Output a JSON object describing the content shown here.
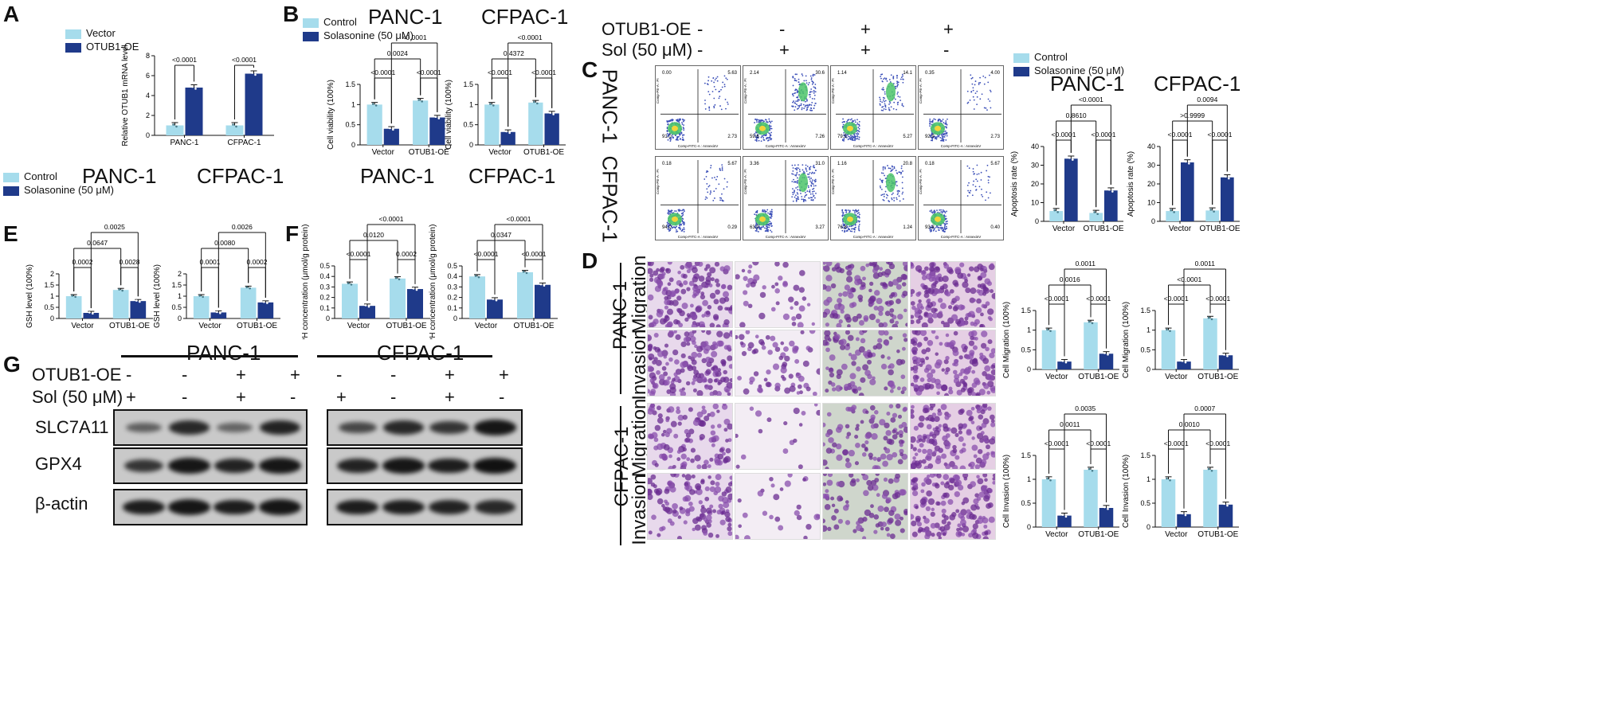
{
  "colors": {
    "light": "#a6dcec",
    "dark": "#1f3a8a",
    "micro_bg": "#e7d6ea",
    "micro_cell": "#6b2c91"
  },
  "panels": {
    "A": "A",
    "B": "B",
    "C": "C",
    "D": "D",
    "E": "E",
    "F": "F",
    "G": "G"
  },
  "legend": {
    "vector": "Vector",
    "oe": "OTUB1-OE",
    "control": "Control",
    "sol": "Solasonine (50 μM)",
    "sol_short": "Solasonine (50 μM)"
  },
  "titles": {
    "panc": "PANC-1",
    "cfpac": "CFPAC-1"
  },
  "conditions_C": {
    "otub_label": "OTUB1-OE",
    "sol_label": "Sol (50 μM)",
    "otub": [
      "-",
      "-",
      "+",
      "+"
    ],
    "sol": [
      "-",
      "+",
      "+",
      "-"
    ]
  },
  "row_labels_C": {
    "panc": "PANC-1",
    "cfpac": "CFPAC-1"
  },
  "row_labels_D": {
    "panc": "PANC-1",
    "cfpac": "CFPAC-1",
    "migration": "Migration",
    "invasion": "Invasion"
  },
  "facs": {
    "xaxis": "Comp-FITC-A : AnnexinV",
    "yaxis": "Comp-PE-A : PI",
    "panc": [
      [
        "0.00",
        "5.63",
        "91.0",
        "2.73"
      ],
      [
        "2.14",
        "30.6",
        "59.6",
        "7.26"
      ],
      [
        "1.14",
        "14.1",
        "79.5",
        "5.27"
      ],
      [
        "0.35",
        "4.00",
        "92.9",
        "2.73"
      ]
    ],
    "cfpac": [
      [
        "0.18",
        "5.67",
        "94.0",
        "0.29"
      ],
      [
        "3.36",
        "31.0",
        "63.0",
        "3.27"
      ],
      [
        "1.16",
        "20.8",
        "76.8",
        "1.24"
      ],
      [
        "0.18",
        "5.67",
        "93.8",
        "0.40"
      ]
    ]
  },
  "western": {
    "panc_label": "PANC-1",
    "cfpac_label": "CFPAC-1",
    "otub_label": "OTUB1-OE",
    "sol_label": "Sol (50 μM)",
    "otub": [
      "-",
      "-",
      "+",
      "+"
    ],
    "sol": [
      "+",
      "-",
      "+",
      "-"
    ],
    "proteins": [
      "SLC7A11",
      "GPX4",
      "β-actin"
    ]
  },
  "chart_data": [
    {
      "id": "A",
      "type": "bar",
      "ylabel": "Relative OTUB1 mRNA level",
      "categories": [
        "PANC-1",
        "CFPAC-1"
      ],
      "ylim": [
        0,
        8
      ],
      "yticks": [
        0,
        2,
        4,
        6,
        8
      ],
      "series": [
        {
          "name": "Vector",
          "values": [
            1.0,
            1.0
          ]
        },
        {
          "name": "OTUB1-OE",
          "values": [
            4.8,
            6.2
          ]
        }
      ],
      "annotations": [
        "<0.0001",
        "<0.0001"
      ]
    },
    {
      "id": "B1",
      "type": "bar",
      "title": "PANC-1",
      "ylabel": "Cell viability (100%)",
      "categories": [
        "Vector",
        "OTUB1-OE"
      ],
      "ylim": [
        0,
        1.5
      ],
      "yticks": [
        0.0,
        0.5,
        1.0,
        1.5
      ],
      "series": [
        {
          "name": "Control",
          "values": [
            1.0,
            1.1
          ]
        },
        {
          "name": "Solasonine (50 μM)",
          "values": [
            0.4,
            0.68
          ]
        }
      ],
      "annotations": [
        "<0.0001",
        "<0.0001",
        "0.0024",
        "<0.0001"
      ]
    },
    {
      "id": "B2",
      "type": "bar",
      "title": "CFPAC-1",
      "ylabel": "Cell viability (100%)",
      "categories": [
        "Vector",
        "OTUB1-OE"
      ],
      "ylim": [
        0,
        1.5
      ],
      "yticks": [
        0.0,
        0.5,
        1.0,
        1.5
      ],
      "series": [
        {
          "name": "Control",
          "values": [
            1.0,
            1.05
          ]
        },
        {
          "name": "Solasonine (50 μM)",
          "values": [
            0.32,
            0.78
          ]
        }
      ],
      "annotations": [
        "<0.0001",
        "<0.0001",
        "0.4372",
        "<0.0001"
      ]
    },
    {
      "id": "E1",
      "type": "bar",
      "title": "PANC-1",
      "ylabel": "GSH level (100%)",
      "categories": [
        "Vector",
        "OTUB1-OE"
      ],
      "ylim": [
        0,
        2.0
      ],
      "yticks": [
        0.0,
        0.5,
        1.0,
        1.5,
        2.0
      ],
      "series": [
        {
          "name": "Control",
          "values": [
            1.0,
            1.28
          ]
        },
        {
          "name": "Solasonine (50 μM)",
          "values": [
            0.25,
            0.78
          ]
        }
      ],
      "annotations": [
        "0.0002",
        "0.0028",
        "0.0647",
        "0.0025"
      ]
    },
    {
      "id": "E2",
      "type": "bar",
      "title": "CFPAC-1",
      "ylabel": "GSH level (100%)",
      "categories": [
        "Vector",
        "OTUB1-OE"
      ],
      "ylim": [
        0,
        2.0
      ],
      "yticks": [
        0.0,
        0.5,
        1.0,
        1.5,
        2.0
      ],
      "series": [
        {
          "name": "Control",
          "values": [
            1.0,
            1.38
          ]
        },
        {
          "name": "Solasonine (50 μM)",
          "values": [
            0.27,
            0.72
          ]
        }
      ],
      "annotations": [
        "0.0001",
        "0.0002",
        "0.0080",
        "0.0026"
      ]
    },
    {
      "id": "F1",
      "type": "bar",
      "title": "PANC-1",
      "ylabel": "NADPH concentration (μmol/g protein)",
      "categories": [
        "Vector",
        "OTUB1-OE"
      ],
      "ylim": [
        0,
        0.5
      ],
      "yticks": [
        0.0,
        0.1,
        0.2,
        0.3,
        0.4,
        0.5
      ],
      "series": [
        {
          "name": "Control",
          "values": [
            0.33,
            0.38
          ]
        },
        {
          "name": "Solasonine (50 μM)",
          "values": [
            0.12,
            0.28
          ]
        }
      ],
      "annotations": [
        "<0.0001",
        "0.0002",
        "0.0120",
        "<0.0001"
      ]
    },
    {
      "id": "F2",
      "type": "bar",
      "title": "CFPAC-1",
      "ylabel": "NADPH concentration (μmol/g protein)",
      "categories": [
        "Vector",
        "OTUB1-OE"
      ],
      "ylim": [
        0,
        0.5
      ],
      "yticks": [
        0.0,
        0.1,
        0.2,
        0.3,
        0.4,
        0.5
      ],
      "series": [
        {
          "name": "Control",
          "values": [
            0.4,
            0.44
          ]
        },
        {
          "name": "Solasonine (50 μM)",
          "values": [
            0.18,
            0.32
          ]
        }
      ],
      "annotations": [
        "<0.0001",
        "<0.0001",
        "0.0347",
        "<0.0001"
      ]
    },
    {
      "id": "C1",
      "type": "bar",
      "title": "PANC-1",
      "ylabel": "Apoptosis rate (%)",
      "categories": [
        "Vector",
        "OTUB1-OE"
      ],
      "ylim": [
        0,
        40
      ],
      "yticks": [
        0,
        10,
        20,
        30,
        40
      ],
      "series": [
        {
          "name": "Control",
          "values": [
            5.5,
            4.5
          ]
        },
        {
          "name": "Solasonine (50 μM)",
          "values": [
            33.5,
            16.5
          ]
        }
      ],
      "annotations": [
        "<0.0001",
        "<0.0001",
        "0.8610",
        "<0.0001"
      ]
    },
    {
      "id": "C2",
      "type": "bar",
      "title": "CFPAC-1",
      "ylabel": "Apoptosis rate (%)",
      "categories": [
        "Vector",
        "OTUB1-OE"
      ],
      "ylim": [
        0,
        40
      ],
      "yticks": [
        0,
        10,
        20,
        30,
        40
      ],
      "series": [
        {
          "name": "Control",
          "values": [
            5.5,
            5.8
          ]
        },
        {
          "name": "Solasonine (50 μM)",
          "values": [
            31.5,
            23.5
          ]
        }
      ],
      "annotations": [
        "<0.0001",
        "<0.0001",
        ">0.9999",
        "0.0094"
      ]
    },
    {
      "id": "D1",
      "type": "bar",
      "ylabel": "Cell Migration (100%)",
      "categories": [
        "Vector",
        "OTUB1-OE"
      ],
      "ylim": [
        0,
        1.5
      ],
      "yticks": [
        0.0,
        0.5,
        1.0,
        1.5
      ],
      "series": [
        {
          "name": "Control",
          "values": [
            1.0,
            1.2
          ]
        },
        {
          "name": "Solasonine (50 μM)",
          "values": [
            0.2,
            0.4
          ]
        }
      ],
      "annotations": [
        "<0.0001",
        "<0.0001",
        "0.0016",
        "0.0011"
      ]
    },
    {
      "id": "D2",
      "type": "bar",
      "ylabel": "Cell Migration (100%)",
      "categories": [
        "Vector",
        "OTUB1-OE"
      ],
      "ylim": [
        0,
        1.5
      ],
      "yticks": [
        0.0,
        0.5,
        1.0,
        1.5
      ],
      "series": [
        {
          "name": "Control",
          "values": [
            1.0,
            1.3
          ]
        },
        {
          "name": "Solasonine (50 μM)",
          "values": [
            0.2,
            0.36
          ]
        }
      ],
      "annotations": [
        "<0.0001",
        "<0.0001",
        "<0.0001",
        "0.0011"
      ]
    },
    {
      "id": "D3",
      "type": "bar",
      "ylabel": "Cell Invasion (100%)",
      "categories": [
        "Vector",
        "OTUB1-OE"
      ],
      "ylim": [
        0,
        1.5
      ],
      "yticks": [
        0.0,
        0.5,
        1.0,
        1.5
      ],
      "series": [
        {
          "name": "Control",
          "values": [
            1.0,
            1.2
          ]
        },
        {
          "name": "Solasonine (50 μM)",
          "values": [
            0.24,
            0.4
          ]
        }
      ],
      "annotations": [
        "<0.0001",
        "<0.0001",
        "0.0011",
        "0.0035"
      ]
    },
    {
      "id": "D4",
      "type": "bar",
      "ylabel": "Cell Invasion (100%)",
      "categories": [
        "Vector",
        "OTUB1-OE"
      ],
      "ylim": [
        0,
        1.5
      ],
      "yticks": [
        0.0,
        0.5,
        1.0,
        1.5
      ],
      "series": [
        {
          "name": "Control",
          "values": [
            1.0,
            1.2
          ]
        },
        {
          "name": "Solasonine (50 μM)",
          "values": [
            0.27,
            0.47
          ]
        }
      ],
      "annotations": [
        "<0.0001",
        "<0.0001",
        "0.0010",
        "0.0007"
      ]
    }
  ]
}
